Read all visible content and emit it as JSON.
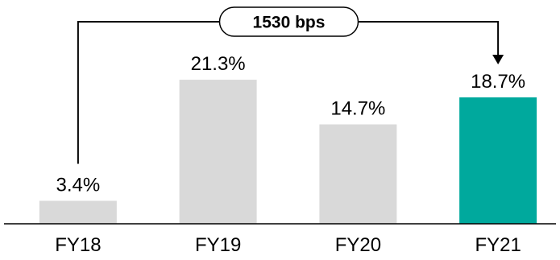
{
  "chart_data": {
    "type": "bar",
    "categories": [
      "FY18",
      "FY19",
      "FY20",
      "FY21"
    ],
    "values": [
      3.4,
      21.3,
      14.7,
      18.7
    ],
    "value_labels": [
      "3.4%",
      "21.3%",
      "14.7%",
      "18.7%"
    ],
    "unit": "%",
    "title": "",
    "xlabel": "",
    "ylabel": "",
    "ylim": [
      0,
      25
    ],
    "grid": false,
    "legend": "none",
    "colors": {
      "default_bar": "#d9d9d9",
      "highlight_bar": "#00a99d",
      "axis": "#000000",
      "annotation": "#000000"
    },
    "highlight_category": "FY21",
    "annotation": {
      "text": "1530 bps",
      "from": "FY18",
      "to": "FY21",
      "shape": "bracket-with-arrow"
    }
  }
}
